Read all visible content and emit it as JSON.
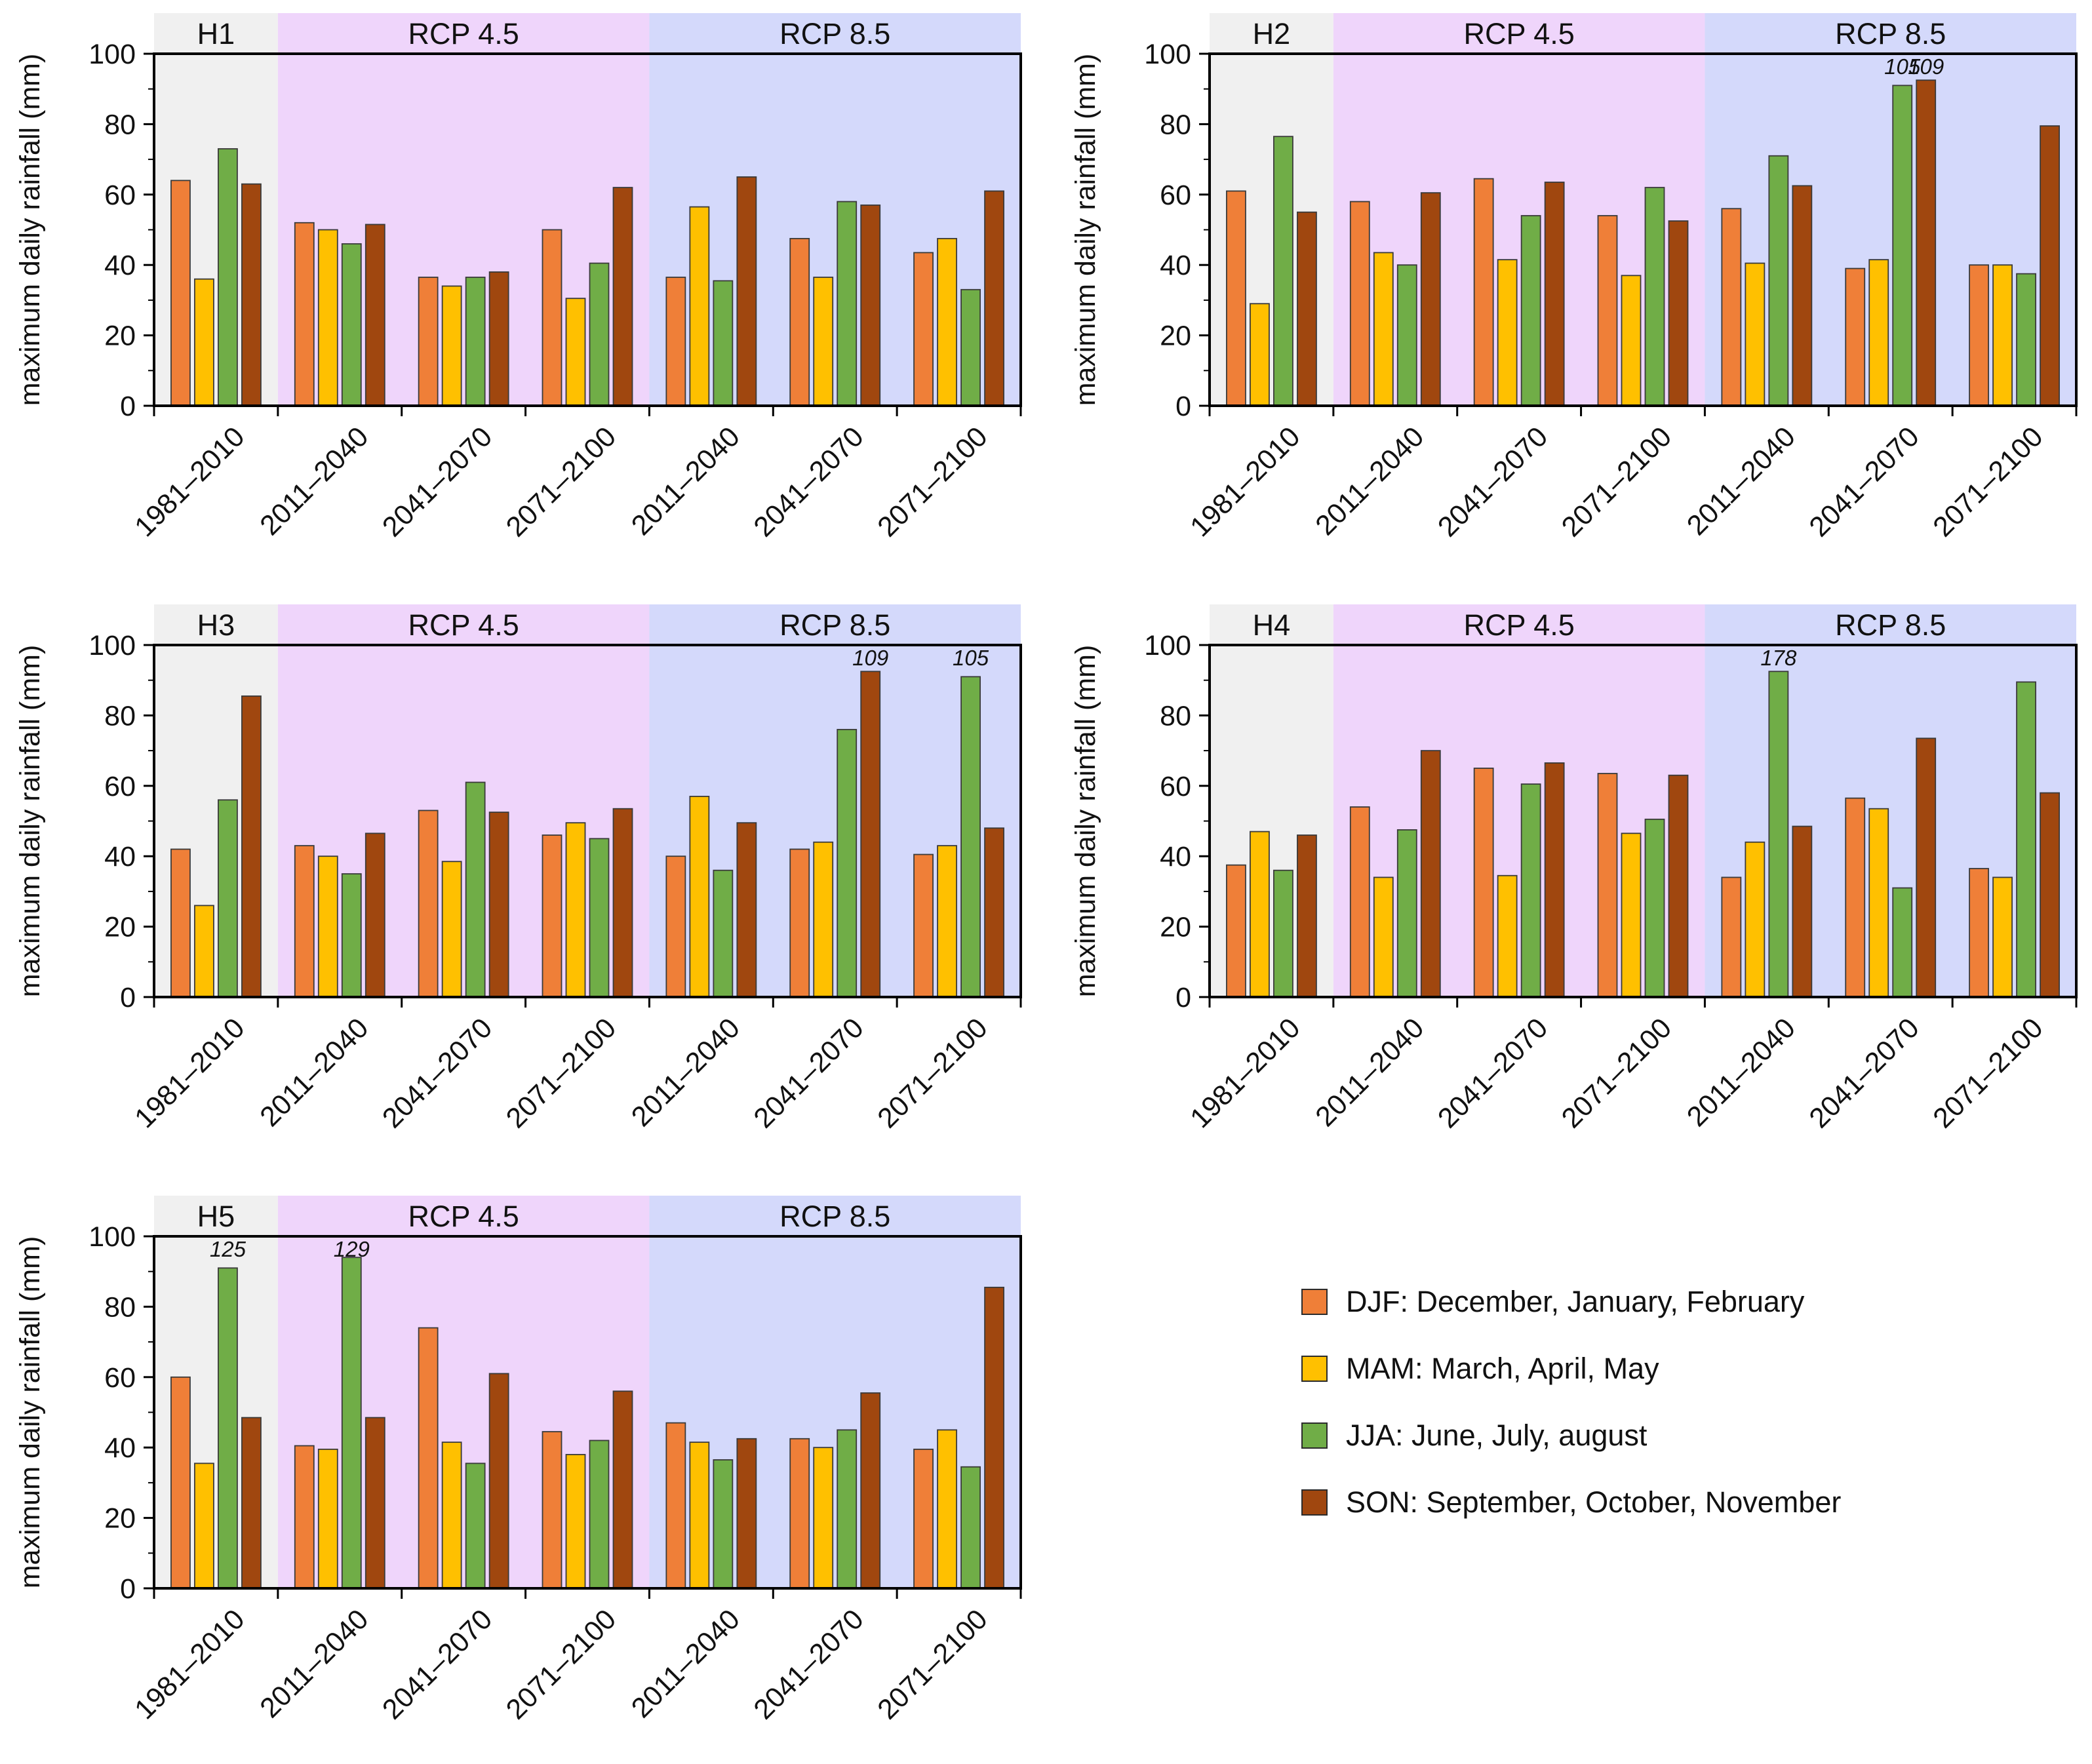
{
  "chart_data": [
    {
      "type": "bar",
      "title": "H1",
      "ylabel": "maximum daily rainfall (mm)",
      "ylim": [
        0,
        100
      ],
      "yticks": [
        0,
        20,
        40,
        60,
        80,
        100
      ],
      "categories": [
        "1981–2010",
        "2011–2040",
        "2041–2070",
        "2071–2100",
        "2011–2040",
        "2041–2070",
        "2071–2100"
      ],
      "groups": [
        {
          "label": "H1",
          "shade": "#f0f0f0",
          "span": [
            0,
            0
          ]
        },
        {
          "label": "RCP 4.5",
          "shade": "#efd5fb",
          "span": [
            1,
            3
          ]
        },
        {
          "label": "RCP 8.5",
          "shade": "#d4d9fb",
          "span": [
            4,
            6
          ]
        }
      ],
      "series": [
        {
          "name": "DJF",
          "values": [
            64,
            52,
            36.5,
            50,
            36.5,
            47.5,
            43.5
          ]
        },
        {
          "name": "MAM",
          "values": [
            36,
            50,
            34,
            30.5,
            56.5,
            36.5,
            47.5
          ]
        },
        {
          "name": "JJA",
          "values": [
            73,
            46,
            36.5,
            40.5,
            35.5,
            58,
            33
          ]
        },
        {
          "name": "SON",
          "values": [
            63,
            51.5,
            38,
            62,
            65,
            57,
            61
          ]
        }
      ],
      "annotations": []
    },
    {
      "type": "bar",
      "title": "H2",
      "ylabel": "maximum daily rainfall (mm)",
      "ylim": [
        0,
        100
      ],
      "yticks": [
        0,
        20,
        40,
        60,
        80,
        100
      ],
      "categories": [
        "1981–2010",
        "2011–2040",
        "2041–2070",
        "2071–2100",
        "2011–2040",
        "2041–2070",
        "2071–2100"
      ],
      "groups": [
        {
          "label": "H2",
          "shade": "#f0f0f0",
          "span": [
            0,
            0
          ]
        },
        {
          "label": "RCP 4.5",
          "shade": "#efd5fb",
          "span": [
            1,
            3
          ]
        },
        {
          "label": "RCP 8.5",
          "shade": "#d4d9fb",
          "span": [
            4,
            6
          ]
        }
      ],
      "series": [
        {
          "name": "DJF",
          "values": [
            61,
            58,
            64.5,
            54,
            56,
            39,
            40
          ]
        },
        {
          "name": "MAM",
          "values": [
            29,
            43.5,
            41.5,
            37,
            40.5,
            41.5,
            40
          ]
        },
        {
          "name": "JJA",
          "values": [
            76.5,
            40,
            54,
            62,
            71,
            91,
            37.5
          ]
        },
        {
          "name": "SON",
          "values": [
            55,
            60.5,
            63.5,
            52.5,
            62.5,
            92.5,
            79.5
          ]
        }
      ],
      "annotations": [
        {
          "category": 5,
          "series": 2,
          "text": "105"
        },
        {
          "category": 5,
          "series": 3,
          "text": "109"
        }
      ]
    },
    {
      "type": "bar",
      "title": "H3",
      "ylabel": "maximum daily rainfall (mm)",
      "ylim": [
        0,
        100
      ],
      "yticks": [
        0,
        20,
        40,
        60,
        80,
        100
      ],
      "categories": [
        "1981–2010",
        "2011–2040",
        "2041–2070",
        "2071–2100",
        "2011–2040",
        "2041–2070",
        "2071–2100"
      ],
      "groups": [
        {
          "label": "H3",
          "shade": "#f0f0f0",
          "span": [
            0,
            0
          ]
        },
        {
          "label": "RCP 4.5",
          "shade": "#efd5fb",
          "span": [
            1,
            3
          ]
        },
        {
          "label": "RCP 8.5",
          "shade": "#d4d9fb",
          "span": [
            4,
            6
          ]
        }
      ],
      "series": [
        {
          "name": "DJF",
          "values": [
            42,
            43,
            53,
            46,
            40,
            42,
            40.5
          ]
        },
        {
          "name": "MAM",
          "values": [
            26,
            40,
            38.5,
            49.5,
            57,
            44,
            43
          ]
        },
        {
          "name": "JJA",
          "values": [
            56,
            35,
            61,
            45,
            36,
            76,
            91
          ]
        },
        {
          "name": "SON",
          "values": [
            85.5,
            46.5,
            52.5,
            53.5,
            49.5,
            92.5,
            48
          ]
        }
      ],
      "annotations": [
        {
          "category": 5,
          "series": 3,
          "text": "109"
        },
        {
          "category": 6,
          "series": 2,
          "text": "105"
        }
      ]
    },
    {
      "type": "bar",
      "title": "H4",
      "ylabel": "maximum daily rainfall (mm)",
      "ylim": [
        0,
        100
      ],
      "yticks": [
        0,
        20,
        40,
        60,
        80,
        100
      ],
      "categories": [
        "1981–2010",
        "2011–2040",
        "2041–2070",
        "2071–2100",
        "2011–2040",
        "2041–2070",
        "2071–2100"
      ],
      "groups": [
        {
          "label": "H4",
          "shade": "#f0f0f0",
          "span": [
            0,
            0
          ]
        },
        {
          "label": "RCP 4.5",
          "shade": "#efd5fb",
          "span": [
            1,
            3
          ]
        },
        {
          "label": "RCP 8.5",
          "shade": "#d4d9fb",
          "span": [
            4,
            6
          ]
        }
      ],
      "series": [
        {
          "name": "DJF",
          "values": [
            37.5,
            54,
            65,
            63.5,
            34,
            56.5,
            36.5
          ]
        },
        {
          "name": "MAM",
          "values": [
            47,
            34,
            34.5,
            46.5,
            44,
            53.5,
            34
          ]
        },
        {
          "name": "JJA",
          "values": [
            36,
            47.5,
            60.5,
            50.5,
            92.5,
            31,
            89.5
          ]
        },
        {
          "name": "SON",
          "values": [
            46,
            70,
            66.5,
            63,
            48.5,
            73.5,
            58
          ]
        }
      ],
      "annotations": [
        {
          "category": 4,
          "series": 2,
          "text": "178"
        }
      ]
    },
    {
      "type": "bar",
      "title": "H5",
      "ylabel": "maximum daily rainfall (mm)",
      "ylim": [
        0,
        100
      ],
      "yticks": [
        0,
        20,
        40,
        60,
        80,
        100
      ],
      "categories": [
        "1981–2010",
        "2011–2040",
        "2041–2070",
        "2071–2100",
        "2011–2040",
        "2041–2070",
        "2071–2100"
      ],
      "groups": [
        {
          "label": "H5",
          "shade": "#f0f0f0",
          "span": [
            0,
            0
          ]
        },
        {
          "label": "RCP 4.5",
          "shade": "#efd5fb",
          "span": [
            1,
            3
          ]
        },
        {
          "label": "RCP 8.5",
          "shade": "#d4d9fb",
          "span": [
            4,
            6
          ]
        }
      ],
      "series": [
        {
          "name": "DJF",
          "values": [
            60,
            40.5,
            74,
            44.5,
            47,
            42.5,
            39.5
          ]
        },
        {
          "name": "MAM",
          "values": [
            35.5,
            39.5,
            41.5,
            38,
            41.5,
            40,
            45
          ]
        },
        {
          "name": "JJA",
          "values": [
            91,
            94,
            35.5,
            42,
            36.5,
            45,
            34.5
          ]
        },
        {
          "name": "SON",
          "values": [
            48.5,
            48.5,
            61,
            56,
            42.5,
            55.5,
            85.5
          ]
        }
      ],
      "annotations": [
        {
          "category": 0,
          "series": 2,
          "text": "125"
        },
        {
          "category": 1,
          "series": 2,
          "text": "129"
        }
      ]
    }
  ],
  "legend": {
    "items": [
      {
        "key": "DJF",
        "label": "DJF: December, January, February",
        "color": "#ef7f38"
      },
      {
        "key": "MAM",
        "label": "MAM: March, April, May",
        "color": "#ffc000"
      },
      {
        "key": "JJA",
        "label": "JJA: June, July, august",
        "color": "#70ad47"
      },
      {
        "key": "SON",
        "label": "SON: September, October, November",
        "color": "#a0470f"
      }
    ]
  }
}
